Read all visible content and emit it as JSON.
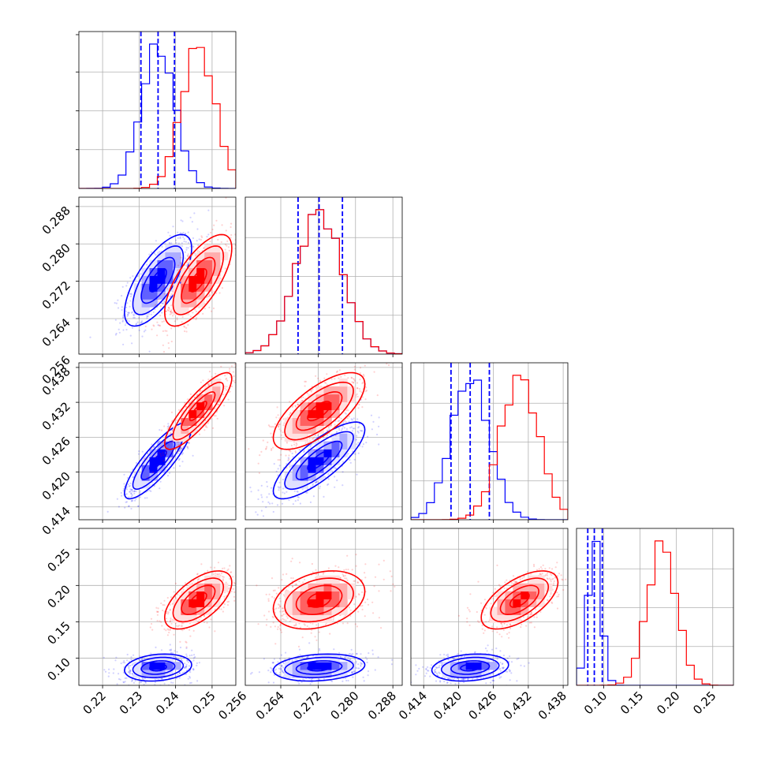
{
  "chart_data": {
    "type": "corner",
    "title": "",
    "params": [
      {
        "range": [
          0.2135,
          0.2565
        ],
        "ticks": [
          0.22,
          0.23,
          0.24,
          0.25
        ],
        "tick_labels": [
          "0.22",
          "0.23",
          "0.24",
          "0.25"
        ]
      },
      {
        "range": [
          0.2564,
          0.29
        ],
        "ticks": [
          0.256,
          0.264,
          0.272,
          0.28,
          0.288
        ],
        "tick_labels": [
          "0.256",
          "0.264",
          "0.272",
          "0.280",
          "0.288"
        ]
      },
      {
        "range": [
          0.4118,
          0.4388
        ],
        "ticks": [
          0.414,
          0.42,
          0.426,
          0.432,
          0.438
        ],
        "tick_labels": [
          "0.414",
          "0.420",
          "0.426",
          "0.432",
          "0.438"
        ]
      },
      {
        "range": [
          0.0625,
          0.2785
        ],
        "ticks": [
          0.1,
          0.15,
          0.2,
          0.25
        ],
        "tick_labels": [
          "0.10",
          "0.15",
          "0.20",
          "0.25"
        ]
      }
    ],
    "series": [
      {
        "name": "",
        "color": "#0000ff",
        "mean": [
          0.2352,
          0.2722,
          0.422,
          0.087
        ],
        "std": [
          0.0046,
          0.0049,
          0.0033,
          0.0093
        ],
        "corr": [
          [
            1,
            0.7,
            0.85,
            0.2
          ],
          [
            0.7,
            1,
            0.8,
            0.2
          ],
          [
            0.85,
            0.8,
            1,
            0.2
          ],
          [
            0.2,
            0.2,
            0.2,
            1
          ]
        ],
        "quantiles": [
          [
            0.2305,
            0.2352,
            0.2397
          ],
          [
            0.2677,
            0.2722,
            0.2772
          ],
          [
            0.4187,
            0.422,
            0.4253
          ],
          [
            0.078,
            0.087,
            0.098
          ]
        ]
      },
      {
        "name": "",
        "color": "#ff0000",
        "mean": [
          0.2462,
          0.2722,
          0.4305,
          0.18
        ],
        "std": [
          0.0046,
          0.0049,
          0.0033,
          0.02
        ],
        "corr": [
          [
            1,
            0.7,
            0.85,
            0.6
          ],
          [
            0.7,
            1,
            0.7,
            0.3
          ],
          [
            0.85,
            0.7,
            1,
            0.6
          ],
          [
            0.6,
            0.3,
            0.6,
            1
          ]
        ],
        "quantiles": []
      }
    ],
    "grid": true,
    "legend": "none"
  }
}
